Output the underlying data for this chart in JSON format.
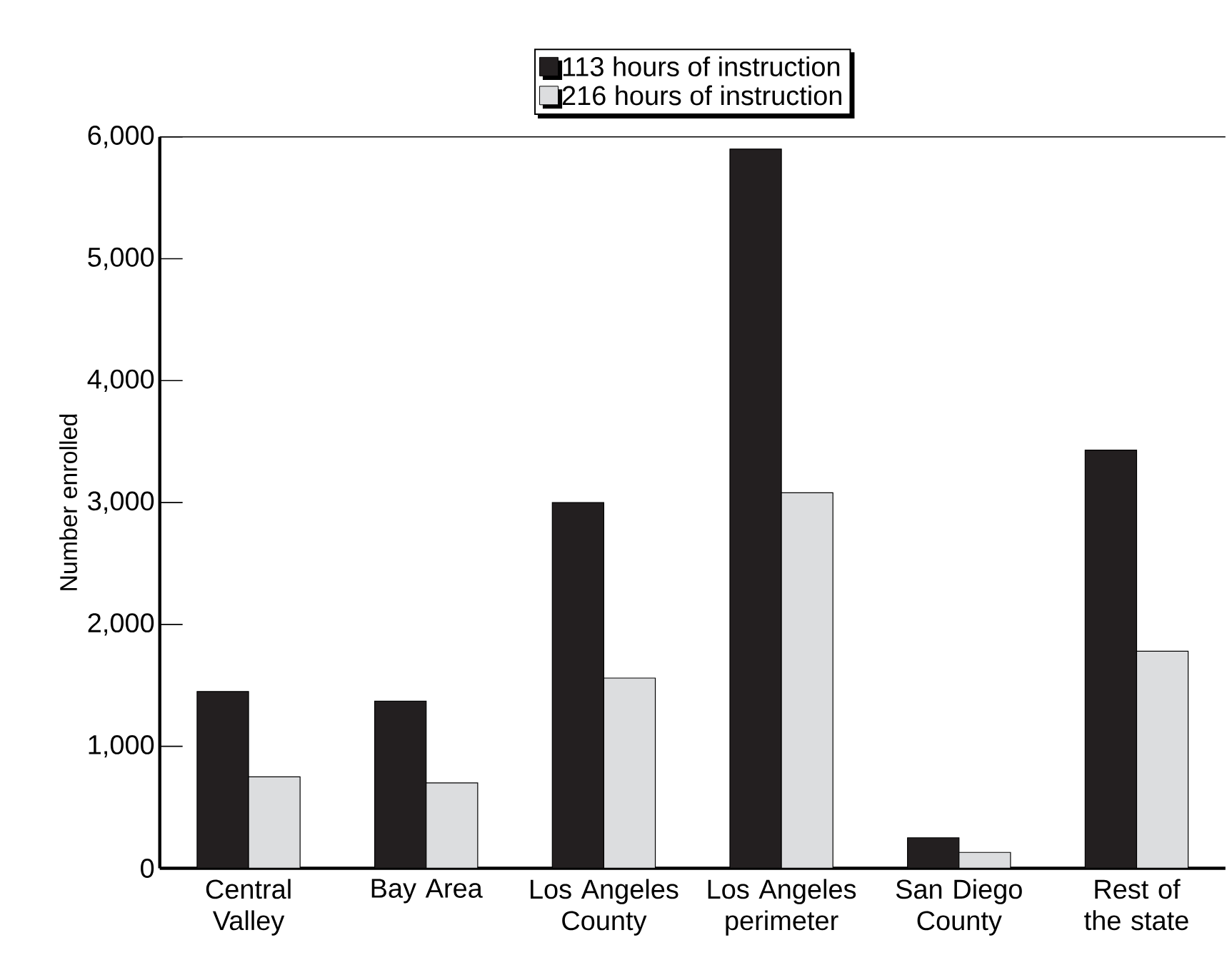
{
  "chart_data": {
    "type": "bar",
    "ylabel": "Number enrolled",
    "categories": [
      "Central Valley",
      "Bay Area",
      "Los Angeles County",
      "Los Angeles perimeter",
      "San Diego County",
      "Rest of the state"
    ],
    "series": [
      {
        "name": "113 hours of instruction",
        "color": "#231f20",
        "values": [
          1450,
          1370,
          3000,
          5900,
          250,
          3430
        ]
      },
      {
        "name": "216 hours of instruction",
        "color": "#dcdddf",
        "values": [
          750,
          700,
          1560,
          3080,
          130,
          1780
        ]
      }
    ],
    "ylim": [
      0,
      6000
    ],
    "yticks": [
      0,
      {
        "value": 1000,
        "label": "1,000"
      },
      {
        "value": 2000,
        "label": "2,000"
      },
      {
        "value": 3000,
        "label": "3,000"
      },
      {
        "value": 4000,
        "label": "4,000"
      },
      {
        "value": 5000,
        "label": "5,000"
      },
      {
        "value": 6000,
        "label": "6,000"
      }
    ],
    "grid": false,
    "legend": "top"
  }
}
